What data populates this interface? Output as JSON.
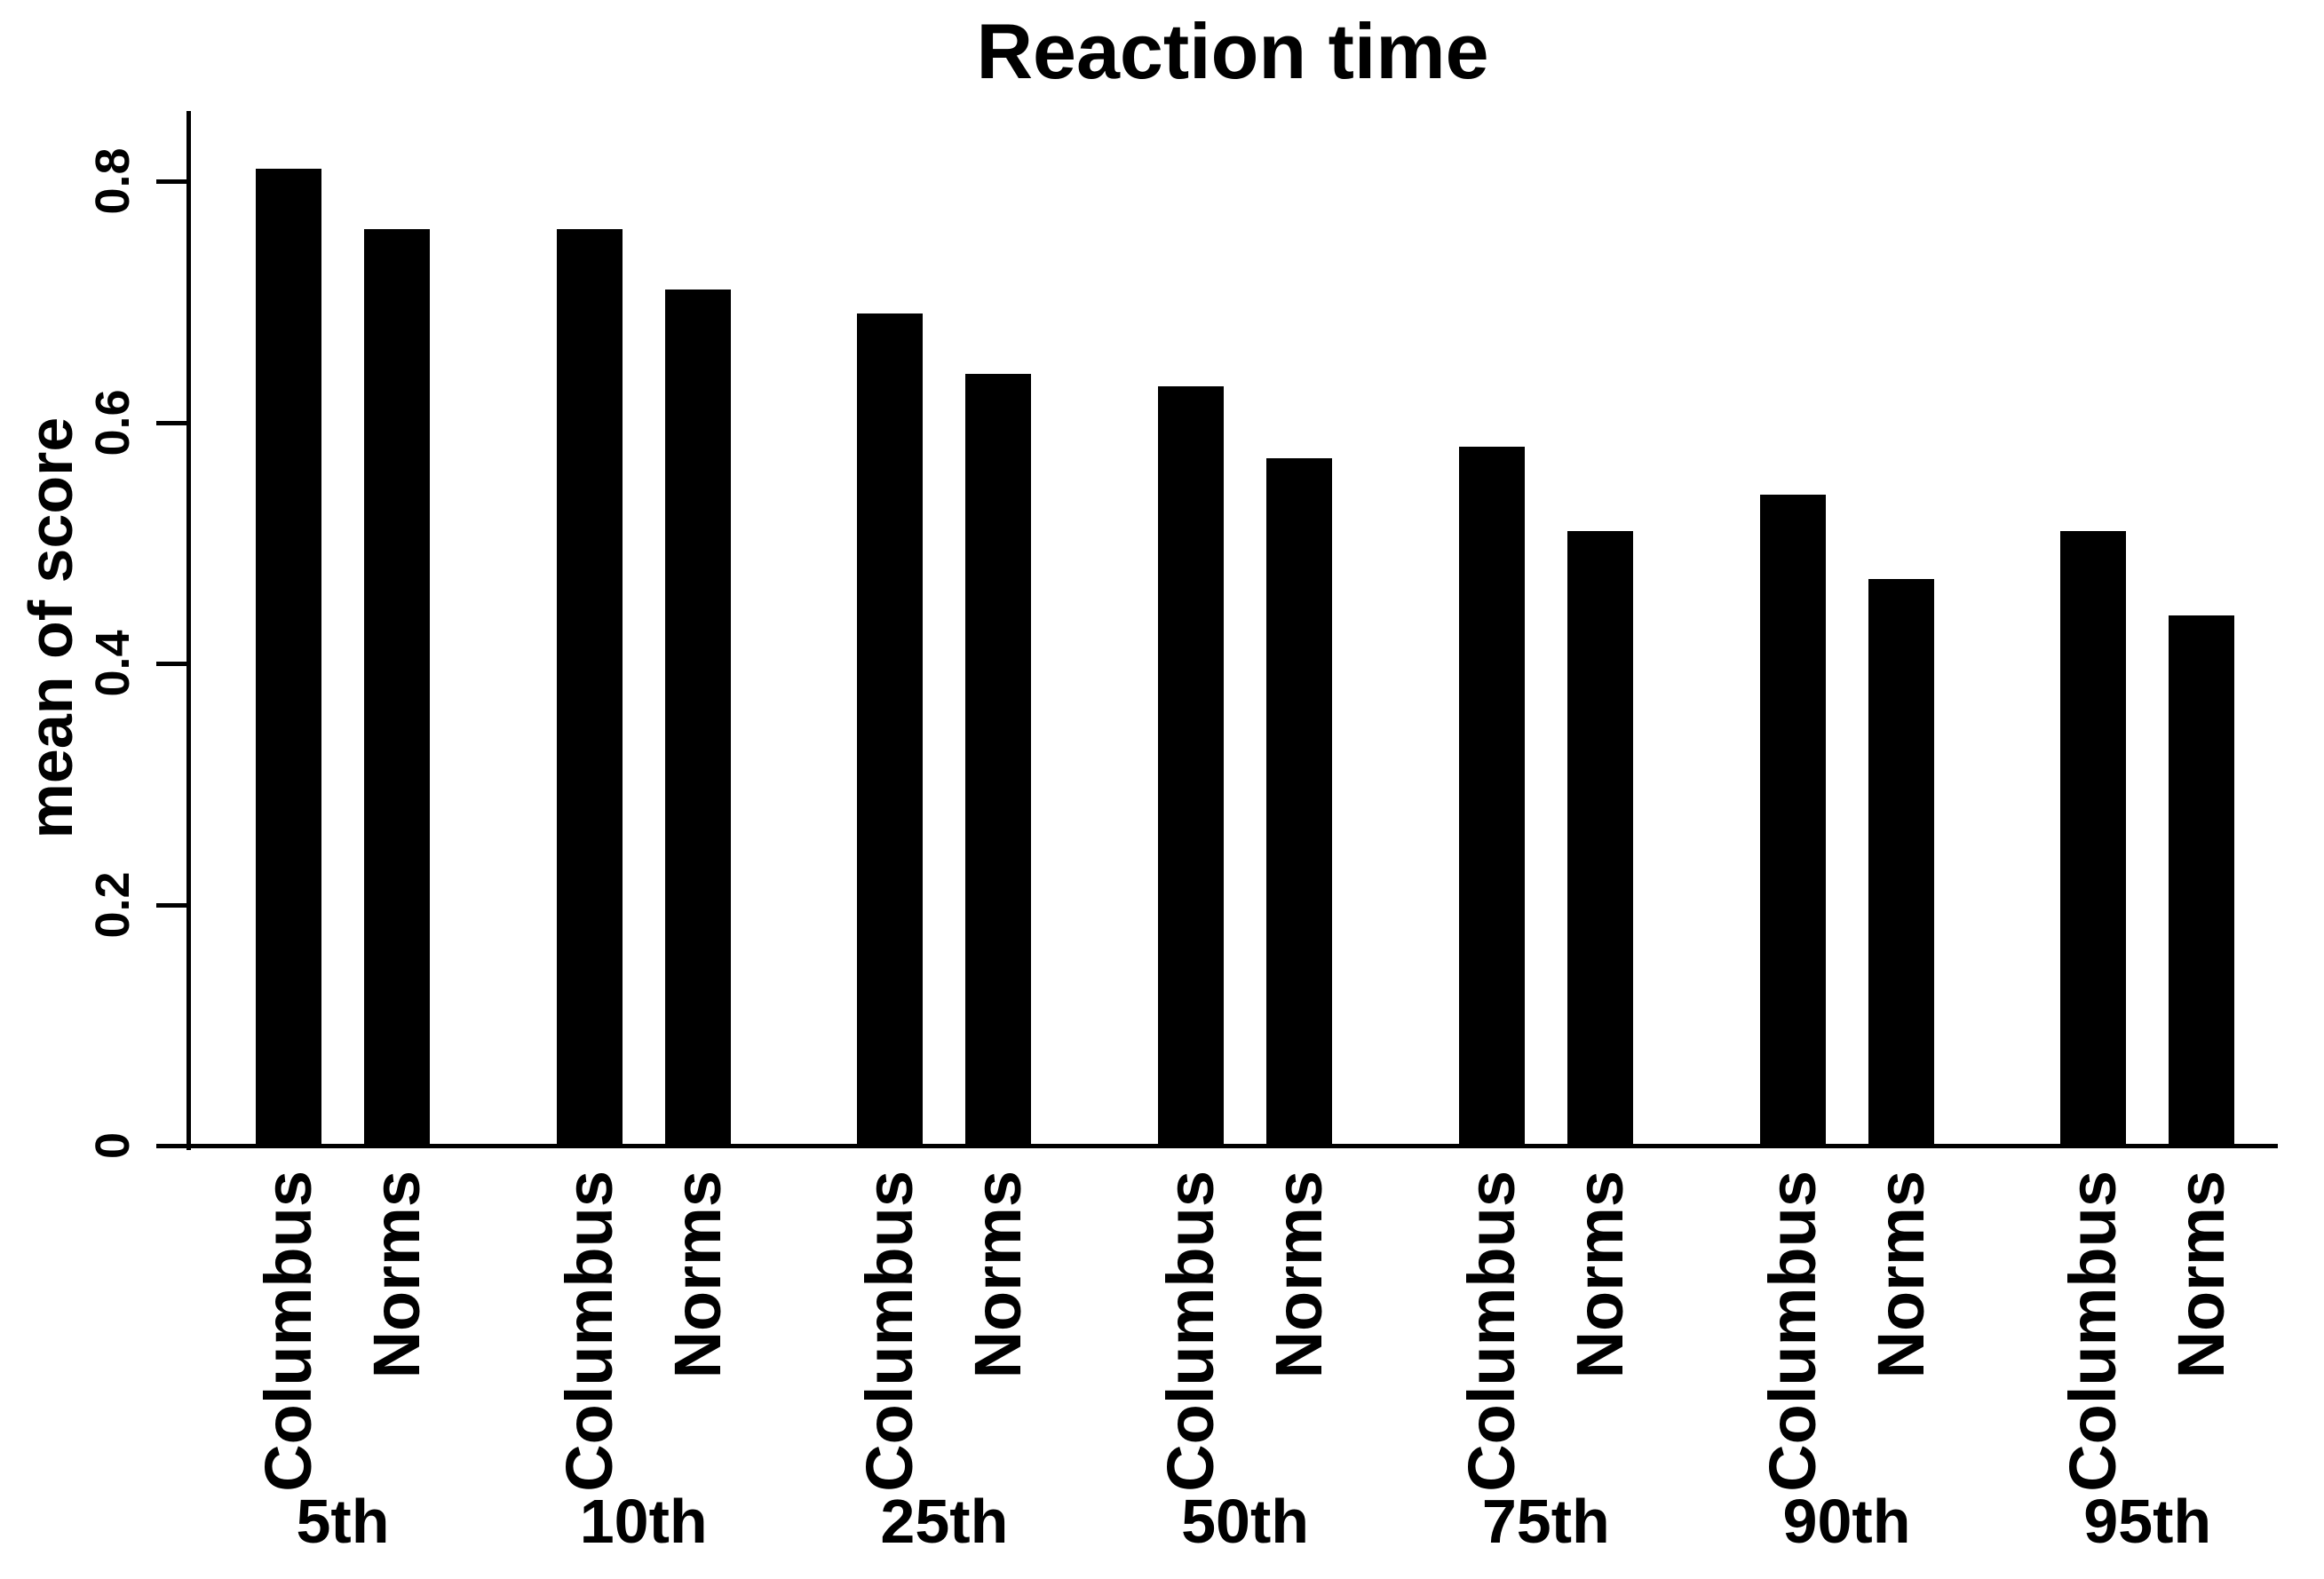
{
  "chart_data": {
    "type": "bar",
    "title": "Reaction time",
    "xlabel": "",
    "ylabel": "mean of score",
    "categories": [
      "5th",
      "10th",
      "25th",
      "50th",
      "75th",
      "90th",
      "95th"
    ],
    "series": [
      {
        "name": "Columbus",
        "values": [
          0.81,
          0.76,
          0.69,
          0.63,
          0.58,
          0.54,
          0.51
        ]
      },
      {
        "name": "Norms",
        "values": [
          0.76,
          0.71,
          0.64,
          0.57,
          0.51,
          0.47,
          0.44
        ]
      }
    ],
    "yticks": [
      0,
      0.2,
      0.4,
      0.6,
      0.8
    ],
    "ytick_labels": [
      "0",
      "0.2",
      "0.4",
      "0.6",
      "0.8"
    ],
    "ylim": [
      0,
      0.86
    ],
    "bar_color": "#000000",
    "background_color": "#ffffff",
    "text_color": "#000000",
    "grid": false,
    "legend": "none",
    "bar_label_rotation_deg": 90,
    "ytick_label_rotation_deg": 90
  }
}
